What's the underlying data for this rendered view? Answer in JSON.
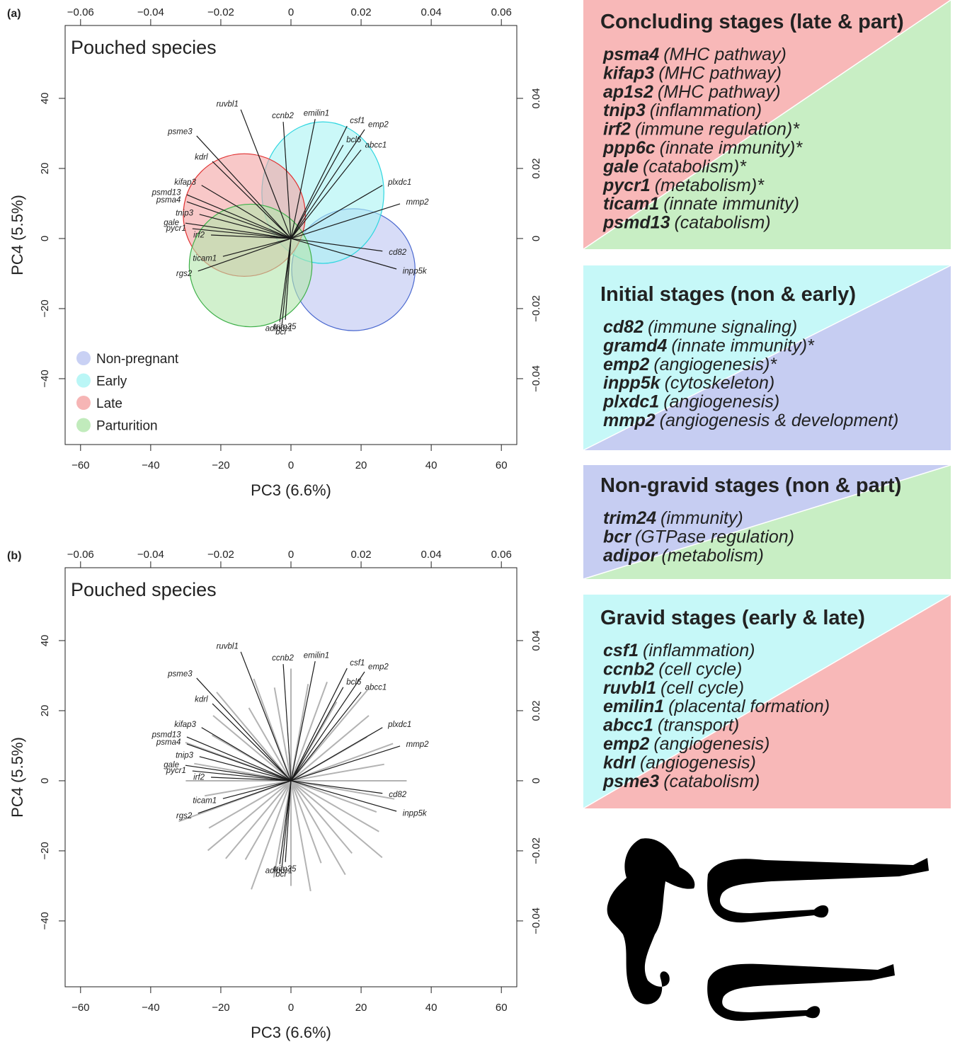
{
  "chart_data": [
    {
      "type": "biplot",
      "panel_label": "(a)",
      "title": "Pouched species",
      "xlabel": "PC3 (6.6%)",
      "ylabel": "PC4 (5.5%)",
      "xlim": [
        -64.4,
        64.4
      ],
      "ylim": [
        -58.8,
        60.8
      ],
      "xticks": [
        {
          "value": -60,
          "label": "−60"
        },
        {
          "value": -40,
          "label": "−40"
        },
        {
          "value": -20,
          "label": "−20"
        },
        0,
        20,
        40,
        60
      ],
      "yticks": [
        {
          "value": -40,
          "label": "−40"
        },
        {
          "value": -20,
          "label": "−20"
        },
        0,
        20,
        40
      ],
      "x2lim": [
        -0.0644,
        0.0644
      ],
      "x2ticks": [
        {
          "value": -0.06,
          "label": "−0.06"
        },
        {
          "value": -0.04,
          "label": "−0.04"
        },
        {
          "value": -0.02,
          "label": "−0.02"
        },
        0,
        0.02,
        0.04,
        0.06
      ],
      "y2lim": [
        -0.0588,
        0.0608
      ],
      "y2ticks": [
        {
          "value": -0.04,
          "label": "−0.04"
        },
        {
          "value": -0.02,
          "label": "−0.02"
        },
        0,
        0.02,
        0.04
      ],
      "legend": "lower left",
      "groups": [
        {
          "name": "Non-pregnant",
          "color": "#bcc5f1",
          "edge": "#4a68cf",
          "center": [
            17.8,
            -8.9
          ],
          "radius": [
            17.6,
            17.4
          ]
        },
        {
          "name": "Early",
          "color": "#a9f4f4",
          "edge": "#2fd6e0",
          "center": [
            9.1,
            13.1
          ],
          "radius": [
            17.4,
            20.2
          ]
        },
        {
          "name": "Late",
          "color": "#f4a3a3",
          "edge": "#e03030",
          "center": [
            -13.3,
            6.7
          ],
          "radius": [
            17.4,
            17.5
          ]
        },
        {
          "name": "Parturition",
          "color": "#b2e6ab",
          "edge": "#3fb04a",
          "center": [
            -11.5,
            -7.7
          ],
          "radius": [
            17.5,
            17.5
          ]
        }
      ],
      "loadings": {
        "color": "#1a1a1a",
        "labels": [
          "ruvbl1",
          "emilin1",
          "ccnb2",
          "csf1",
          "emp2",
          "psme3",
          "bcl6",
          "abcc1",
          "kdrl",
          "plxdc1",
          "kifap3",
          "psmd13",
          "psma4",
          "mmp2",
          "tnip3",
          "gale",
          "pycr1",
          "irf2",
          "cd82",
          "rgs2",
          "inpp5k",
          "ticam1",
          "adipor1",
          "trim25",
          "bcr"
        ],
        "x": [
          -0.0143,
          0.0069,
          -0.0022,
          0.016,
          0.021,
          -0.0269,
          0.0149,
          0.02,
          -0.0224,
          0.0261,
          -0.0255,
          -0.0297,
          -0.0297,
          0.0311,
          -0.0261,
          -0.0301,
          -0.0281,
          -0.0228,
          0.0261,
          -0.0265,
          0.0301,
          -0.0194,
          -0.0032,
          -0.0016,
          -0.0026
        ],
        "y": [
          0.0368,
          0.0341,
          0.0333,
          0.0321,
          0.0311,
          0.0293,
          0.0267,
          0.0253,
          0.022,
          0.0152,
          0.0152,
          0.0125,
          0.0105,
          0.0099,
          0.0069,
          0.0044,
          0.0028,
          0.001,
          -0.0036,
          -0.0093,
          -0.0087,
          -0.0051,
          -0.0238,
          -0.0232,
          -0.0248
        ]
      }
    },
    {
      "type": "biplot",
      "panel_label": "(b)",
      "title": "Pouched species",
      "xlabel": "PC3 (6.6%)",
      "ylabel": "PC4 (5.5%)",
      "xlim": [
        -64.4,
        64.4
      ],
      "ylim": [
        -58.8,
        60.8
      ],
      "xticks": [
        {
          "value": -60,
          "label": "−60"
        },
        {
          "value": -40,
          "label": "−40"
        },
        {
          "value": -20,
          "label": "−20"
        },
        0,
        20,
        40,
        60
      ],
      "yticks": [
        {
          "value": -40,
          "label": "−40"
        },
        {
          "value": -20,
          "label": "−20"
        },
        0,
        20,
        40
      ],
      "x2lim": [
        -0.0644,
        0.0644
      ],
      "x2ticks": [
        {
          "value": -0.06,
          "label": "−0.06"
        },
        {
          "value": -0.04,
          "label": "−0.04"
        },
        {
          "value": -0.02,
          "label": "−0.02"
        },
        0,
        0.02,
        0.04,
        0.06
      ],
      "y2lim": [
        -0.0588,
        0.0608
      ],
      "y2ticks": [
        {
          "value": -0.04,
          "label": "−0.04"
        },
        {
          "value": -0.02,
          "label": "−0.02"
        },
        0,
        0.02,
        0.04
      ],
      "background_loadings": {
        "color": "#b3b3b3",
        "x": [
          0.033,
          0.0266,
          0.0291,
          0.0217,
          0.0222,
          0.0219,
          0.013,
          0.0103,
          0.0049,
          0,
          -0.0047,
          -0.0106,
          -0.012,
          -0.0212,
          -0.0222,
          -0.0225,
          -0.0301,
          -0.0276,
          -0.03,
          -0.0246,
          -0.032,
          -0.0234,
          -0.0237,
          -0.0186,
          -0.013,
          -0.0113,
          -0.0049,
          0,
          0.0056,
          0.0086,
          0.0155,
          0.0174,
          0.026,
          0.0251,
          0.0244,
          0.0295
        ],
        "y": [
          0,
          0.0047,
          0.0106,
          0.0125,
          0.0186,
          0.026,
          0.0225,
          0.0282,
          0.0276,
          0.032,
          0.0266,
          0.0291,
          0.0208,
          0.0253,
          0.0186,
          0.013,
          0.0109,
          0.0049,
          0,
          -0.0043,
          -0.0116,
          -0.0135,
          -0.0199,
          -0.0222,
          -0.0225,
          -0.031,
          -0.0276,
          -0.03,
          -0.0315,
          -0.0235,
          -0.0268,
          -0.0207,
          -0.0219,
          -0.0145,
          -0.0089,
          -0.0052
        ]
      },
      "loadings": {
        "color": "#1a1a1a",
        "labels": [
          "ruvbl1",
          "emilin1",
          "ccnb2",
          "csf1",
          "emp2",
          "psme3",
          "bcl6",
          "abcc1",
          "kdrl",
          "plxdc1",
          "kifap3",
          "psmd13",
          "psma4",
          "mmp2",
          "tnip3",
          "gale",
          "pycr1",
          "irf2",
          "cd82",
          "rgs2",
          "inpp5k",
          "ticam1",
          "adipor1",
          "trim25",
          "bcr"
        ],
        "x": [
          -0.0143,
          0.0069,
          -0.0022,
          0.016,
          0.021,
          -0.0269,
          0.0149,
          0.02,
          -0.0224,
          0.0261,
          -0.0255,
          -0.0297,
          -0.0297,
          0.0311,
          -0.0261,
          -0.0301,
          -0.0281,
          -0.0228,
          0.0261,
          -0.0265,
          0.0301,
          -0.0194,
          -0.0032,
          -0.0016,
          -0.0026
        ],
        "y": [
          0.0368,
          0.0341,
          0.0333,
          0.0321,
          0.0311,
          0.0293,
          0.0267,
          0.0253,
          0.022,
          0.0152,
          0.0152,
          0.0125,
          0.0105,
          0.0099,
          0.0069,
          0.0044,
          0.0028,
          0.001,
          -0.0036,
          -0.0093,
          -0.0087,
          -0.0051,
          -0.0238,
          -0.0232,
          -0.0248
        ]
      }
    }
  ],
  "gene_boxes": [
    {
      "title": "Concluding stages (late & part)",
      "colors": [
        "#f8b8b8",
        "#c8eec4"
      ],
      "genes": [
        {
          "gene": "psma4",
          "function": "(MHC pathway)"
        },
        {
          "gene": "kifap3",
          "function": "(MHC pathway)"
        },
        {
          "gene": "ap1s2",
          "function": "(MHC pathway)"
        },
        {
          "gene": "tnip3",
          "function": "(inflammation)"
        },
        {
          "gene": "irf2",
          "function": "(immune regulation)*"
        },
        {
          "gene": "ppp6c",
          "function": "(innate immunity)*"
        },
        {
          "gene": "gale",
          "function": "(catabolism)*"
        },
        {
          "gene": "pycr1",
          "function": "(metabolism)*"
        },
        {
          "gene": "ticam1",
          "function": "(innate immunity)"
        },
        {
          "gene": "psmd13",
          "function": "(catabolism)"
        }
      ]
    },
    {
      "title": "Initial stages (non & early)",
      "colors": [
        "#c6f8f8",
        "#c6cdf2"
      ],
      "genes": [
        {
          "gene": "cd82",
          "function": "(immune signaling)"
        },
        {
          "gene": "gramd4",
          "function": "(innate immunity)*"
        },
        {
          "gene": "emp2",
          "function": "(angiogenesis)*"
        },
        {
          "gene": "inpp5k",
          "function": "(cytoskeleton)"
        },
        {
          "gene": "plxdc1",
          "function": "(angiogenesis)"
        },
        {
          "gene": "mmp2",
          "function": "(angiogenesis & development)"
        }
      ]
    },
    {
      "title": "Non-gravid stages (non & part)",
      "colors": [
        "#c6cdf2",
        "#c8eec4"
      ],
      "genes": [
        {
          "gene": "trim24",
          "function": "(immunity)"
        },
        {
          "gene": "bcr",
          "function": "(GTPase regulation)"
        },
        {
          "gene": "adipor",
          "function": "(metabolism)"
        }
      ]
    },
    {
      "title": "Gravid stages (early & late)",
      "colors": [
        "#c6f8f8",
        "#f8b8b8"
      ],
      "genes": [
        {
          "gene": "csf1",
          "function": "(inflammation)"
        },
        {
          "gene": "ccnb2",
          "function": "(cell cycle)"
        },
        {
          "gene": "ruvbl1",
          "function": "(cell cycle)"
        },
        {
          "gene": "emilin1",
          "function": "(placental formation)"
        },
        {
          "gene": "abcc1",
          "function": "(transport)"
        },
        {
          "gene": "emp2",
          "function": "(angiogenesis)"
        },
        {
          "gene": "kdrl",
          "function": "(angiogenesis)"
        },
        {
          "gene": "psme3",
          "function": "(catabolism)"
        }
      ]
    }
  ]
}
